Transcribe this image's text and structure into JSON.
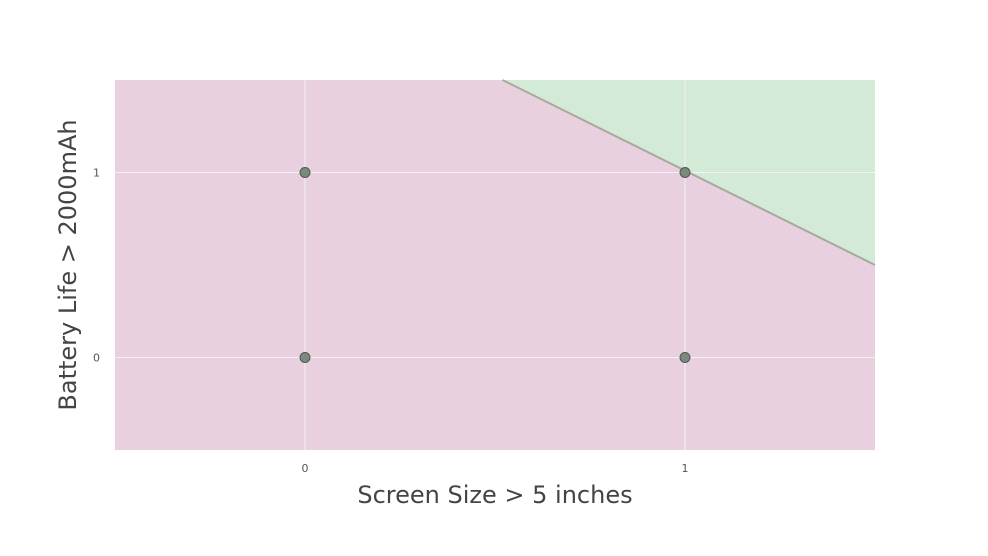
{
  "chart_data": {
    "type": "scatter",
    "title": "",
    "xlabel": "Screen Size > 5 inches",
    "ylabel": "Battery Life > 2000mAh",
    "xlim": [
      -0.5,
      1.5
    ],
    "ylim": [
      -0.5,
      1.5
    ],
    "x_ticks": [
      "0",
      "1"
    ],
    "y_ticks": [
      "0",
      "1"
    ],
    "grid": true,
    "legend": "none",
    "points": [
      {
        "x": 0,
        "y": 0
      },
      {
        "x": 1,
        "y": 0
      },
      {
        "x": 0,
        "y": 1
      },
      {
        "x": 1,
        "y": 1
      }
    ],
    "decision_boundary": {
      "description": "line separating regions",
      "points": [
        [
          0.52,
          1.5
        ],
        [
          1.5,
          0.5
        ]
      ]
    },
    "regions": {
      "negative_color": "#e8d0df",
      "positive_color": "#d3ead6"
    },
    "colors": {
      "point_fill": "#7a8a7c",
      "point_stroke": "#555555",
      "boundary": "#a8a8a0",
      "grid": "#f4f0f3"
    }
  }
}
